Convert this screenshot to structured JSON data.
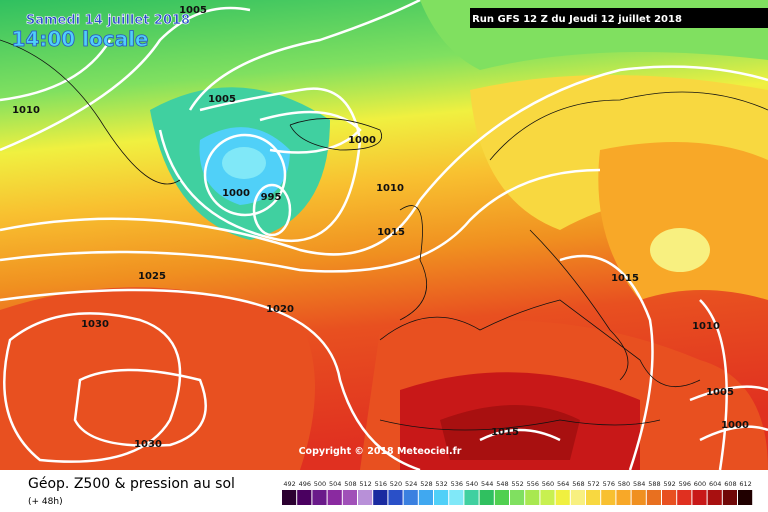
{
  "header": {
    "date": "Samedi 14 juillet 2018",
    "time": "14:00 locale",
    "run": "Run GFS 12 Z du Jeudi 12 juillet 2018"
  },
  "isobar_labels": [
    "1005",
    "1010",
    "1005",
    "1000",
    "1000",
    "995",
    "1010",
    "1015",
    "1025",
    "1020",
    "1030",
    "1015",
    "1010",
    "1005",
    "1000",
    "1015",
    "1030"
  ],
  "copyright": "Copyright © 2018 Meteociel.fr",
  "footer": {
    "title": "Géop. Z500 & pression au sol",
    "lead": "(+ 48h)"
  },
  "colorbar": {
    "labels": [
      492,
      496,
      500,
      504,
      508,
      512,
      516,
      520,
      524,
      528,
      532,
      536,
      540,
      544,
      548,
      552,
      556,
      560,
      564,
      568,
      572,
      576,
      580,
      584,
      588,
      592,
      596,
      600,
      604,
      608,
      612
    ],
    "colors": [
      "#2b0030",
      "#4a0060",
      "#6a1a8a",
      "#8a2aa0",
      "#a050b8",
      "#b890d8",
      "#1a2aa0",
      "#2a50c8",
      "#3a80e0",
      "#40a8f0",
      "#50d0f8",
      "#80e8f8",
      "#40d0a0",
      "#30c060",
      "#50d050",
      "#80e060",
      "#a8e850",
      "#c8f050",
      "#f0f040",
      "#f8f080",
      "#f8d840",
      "#f8c030",
      "#f8a828",
      "#f09020",
      "#e87020",
      "#e85020",
      "#e03020",
      "#c81818",
      "#a81010",
      "#700808",
      "#200000"
    ]
  }
}
